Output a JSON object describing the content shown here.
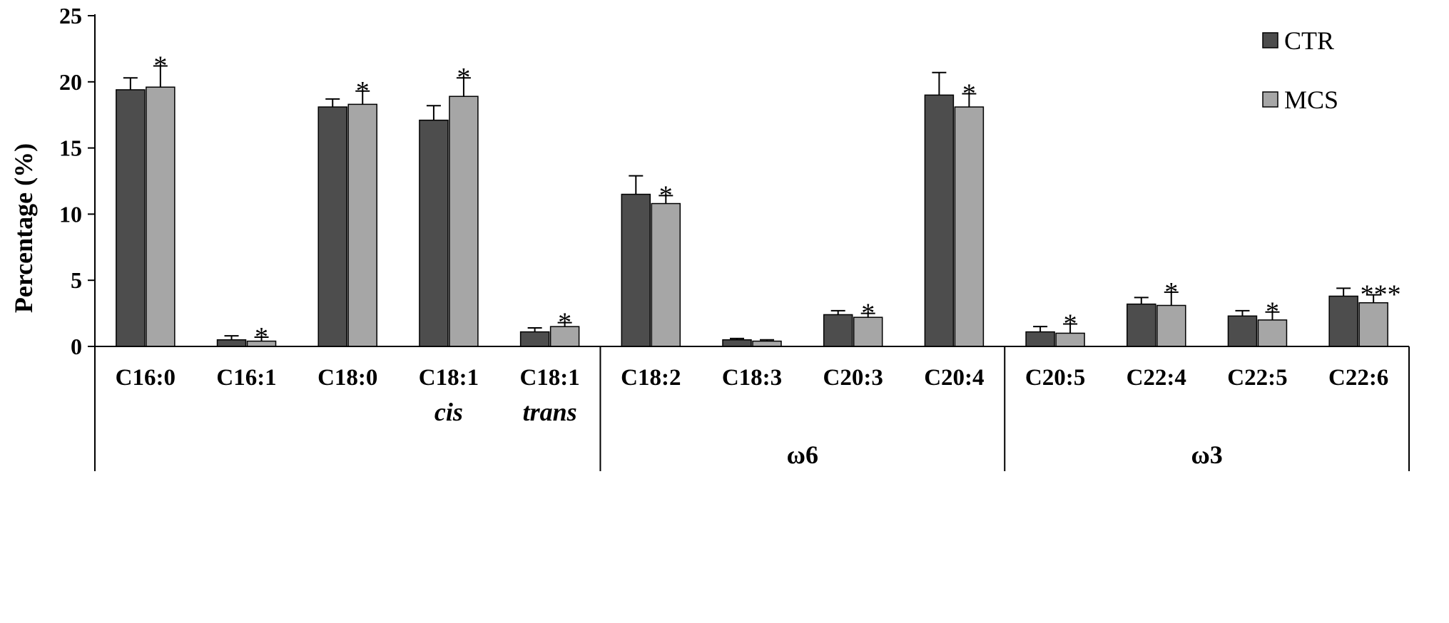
{
  "chart_data": {
    "type": "bar",
    "ylabel": "Percentage (%)",
    "ylim": [
      0,
      25
    ],
    "yticks": [
      "0",
      "5",
      "10",
      "15",
      "20",
      "25"
    ],
    "ytick_values": [
      0,
      5,
      10,
      15,
      20,
      25
    ],
    "legend_position": "top-right",
    "categories": [
      "C16:0",
      "C16:1",
      "C18:0",
      "C18:1",
      "C18:1",
      "C18:2",
      "C18:3",
      "C20:3",
      "C20:4",
      "C20:5",
      "C22:4",
      "C22:5",
      "C22:6"
    ],
    "category_sublabels": [
      "",
      "",
      "",
      "cis",
      "trans",
      "",
      "",
      "",
      "",
      "",
      "",
      "",
      ""
    ],
    "groups": [
      {
        "label": "",
        "from": 0,
        "to": 4
      },
      {
        "label": "ω6",
        "from": 5,
        "to": 8
      },
      {
        "label": "ω3",
        "from": 9,
        "to": 12
      }
    ],
    "series": [
      {
        "name": "CTR",
        "color": "#4d4d4d",
        "values": [
          19.4,
          0.5,
          18.1,
          17.1,
          1.1,
          11.5,
          0.5,
          2.4,
          19.0,
          1.1,
          3.2,
          2.3,
          3.8
        ],
        "errors": [
          0.9,
          0.3,
          0.6,
          1.1,
          0.3,
          1.4,
          0.1,
          0.3,
          1.7,
          0.4,
          0.5,
          0.4,
          0.6
        ]
      },
      {
        "name": "MCS",
        "color": "#a6a6a6",
        "values": [
          19.6,
          0.4,
          18.3,
          18.9,
          1.5,
          10.8,
          0.4,
          2.2,
          18.1,
          1.0,
          3.1,
          2.0,
          3.3
        ],
        "errors": [
          1.6,
          0.3,
          1.0,
          1.4,
          0.3,
          0.6,
          0.1,
          0.3,
          1.0,
          0.7,
          1.0,
          0.6,
          0.6
        ]
      }
    ],
    "significance": [
      "*",
      "*",
      "*",
      "*",
      "*",
      "*",
      "",
      "*",
      "*",
      "*",
      "*",
      "*",
      "***"
    ]
  }
}
